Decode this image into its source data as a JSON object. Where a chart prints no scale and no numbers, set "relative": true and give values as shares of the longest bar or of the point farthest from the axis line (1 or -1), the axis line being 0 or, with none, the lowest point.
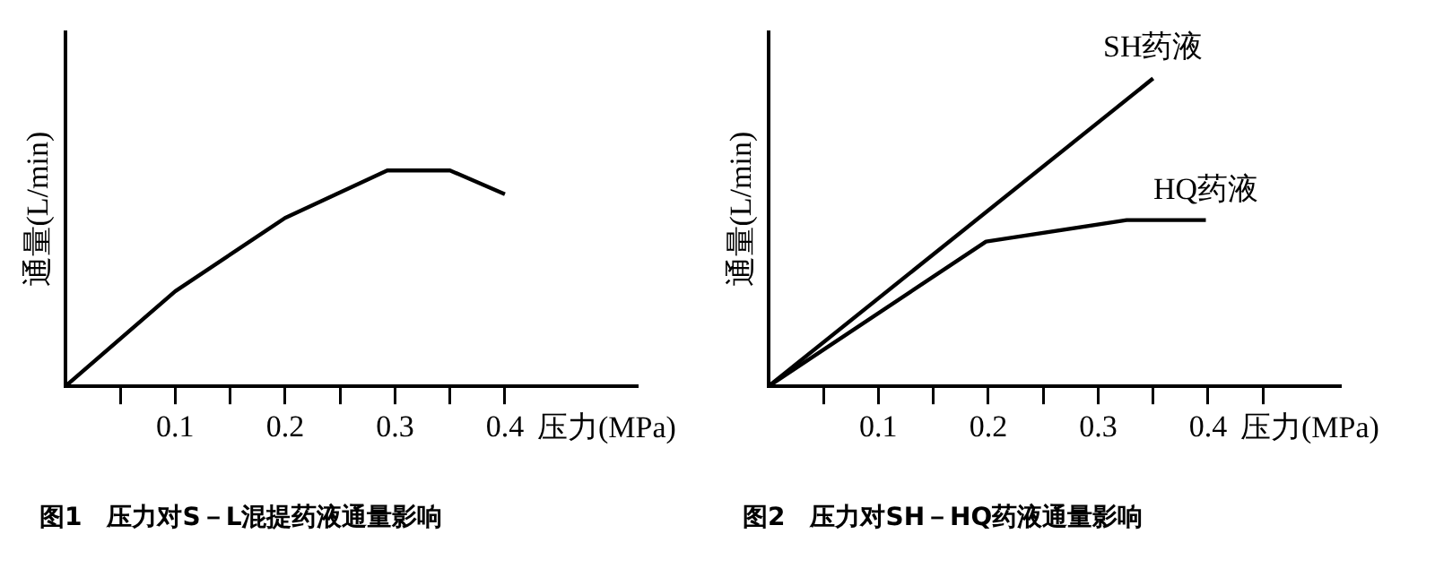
{
  "chart_data": [
    {
      "type": "line",
      "title": "图1　压力对S－L混提药液通量影响",
      "xlabel": "压力(MPa)",
      "ylabel": "通量(L/min)",
      "relative": true,
      "legend": false,
      "marker": "none",
      "line_style": "solid",
      "grid": false,
      "tick_labels": "x",
      "xlim": [
        0,
        0.52
      ],
      "xticks": [
        {
          "value": 0.05,
          "label": null
        },
        0.1,
        {
          "value": 0.15,
          "label": null
        },
        0.2,
        {
          "value": 0.25,
          "label": null
        },
        0.3,
        {
          "value": 0.35,
          "label": null
        },
        0.4
      ],
      "series": [
        {
          "color": "#000000",
          "x": [
            0,
            0.1,
            0.2,
            0.293,
            0.35,
            0.4
          ],
          "values": [
            0,
            0.44,
            0.78,
            1,
            1,
            0.89
          ]
        }
      ]
    },
    {
      "type": "line",
      "title": "图2　压力对SH－HQ药液通量影响",
      "xlabel": "压力(MPa)",
      "ylabel": "通量(L/min)",
      "relative": true,
      "legend": false,
      "marker": "none",
      "line_style": "solid",
      "grid": false,
      "tick_labels": "x",
      "xlim": [
        0,
        0.52
      ],
      "xticks": [
        {
          "value": 0.05,
          "label": null
        },
        0.1,
        {
          "value": 0.15,
          "label": null
        },
        0.2,
        {
          "value": 0.25,
          "label": null
        },
        0.3,
        {
          "value": 0.35,
          "label": null
        },
        0.4,
        {
          "value": 0.45,
          "label": null
        }
      ],
      "series": [
        {
          "name": "SH药液",
          "color": "#000000",
          "x": [
            0,
            0.35
          ],
          "values": [
            0,
            1
          ]
        },
        {
          "name": "HQ药液",
          "color": "#000000",
          "x": [
            0,
            0.198,
            0.326,
            0.398
          ],
          "values": [
            0,
            0.47,
            0.54,
            0.54
          ]
        }
      ]
    }
  ]
}
